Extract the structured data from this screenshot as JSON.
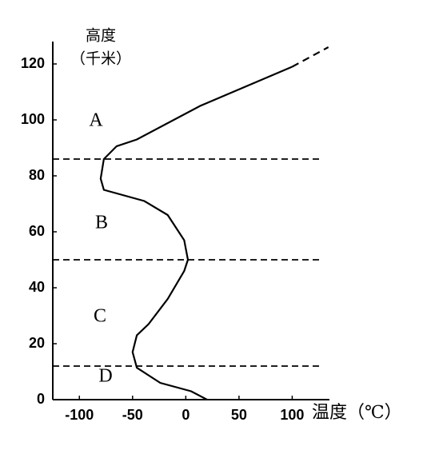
{
  "chart_data": {
    "type": "line",
    "y_label": "高度",
    "y_unit": "（千米）",
    "x_label": "温度（℃）",
    "xlim": [
      -125,
      135
    ],
    "ylim": [
      0,
      128
    ],
    "xticks": [
      -100,
      -50,
      0,
      50,
      100
    ],
    "yticks": [
      0,
      20,
      40,
      60,
      80,
      100,
      120
    ],
    "color": "#000000",
    "series": [
      {
        "style": "solid",
        "x": [
          20,
          5,
          -24,
          -46,
          -50,
          -46,
          -35,
          -17,
          -1.5,
          2,
          -1.5,
          -17,
          -39,
          -77,
          -80,
          -77,
          -65,
          -46,
          13.5,
          100
        ],
        "values": [
          0,
          3,
          6,
          11.4,
          17,
          23,
          27,
          36,
          46,
          50,
          57,
          66,
          71,
          75,
          79,
          86,
          90.6,
          93,
          105,
          119
        ]
      },
      {
        "style": "dashed",
        "x": [
          100,
          134
        ],
        "values": [
          119,
          126
        ]
      }
    ],
    "hlines": [
      86,
      50,
      12
    ],
    "hline_end": 126,
    "annotations": [
      "A",
      "B",
      "C",
      "D"
    ]
  }
}
